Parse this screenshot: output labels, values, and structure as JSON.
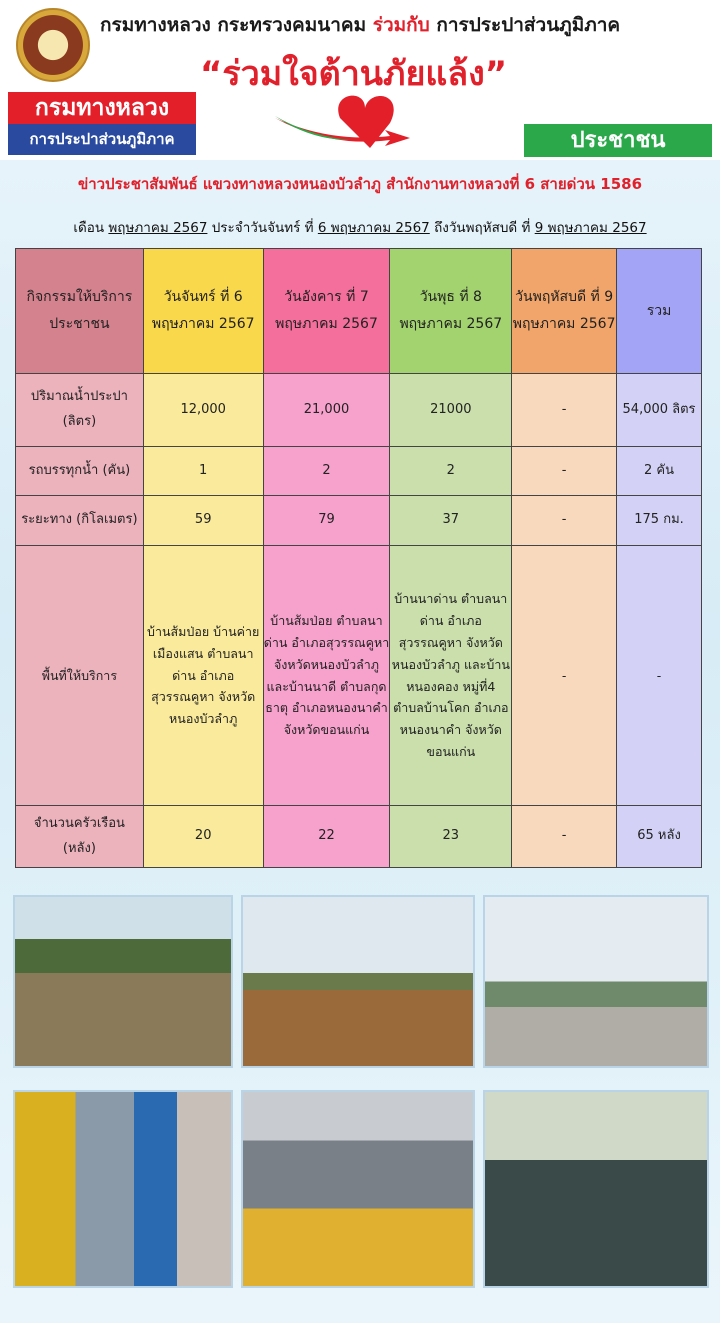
{
  "header": {
    "title_part1": "กรมทางหลวง กระทรวงคมนาคม ",
    "title_joint": "ร่วมกับ",
    "title_part2": " การประปาส่วนภูมิภาค",
    "slogan": "“ร่วมใจต้านภัยแล้ง”",
    "logo_doh": "กรมทางหลวง",
    "logo_pwa": "การประปาส่วนภูมิภาค",
    "logo_people": "ประชาชน",
    "news_line": "ข่าวประชาสัมพันธ์  แขวงทางหลวงหนองบัวลำภู  สำนักงานทางหลวงที่ 6  สายด่วน 1586",
    "period": {
      "month_label": "เดือน ",
      "month": "พฤษภาคม 2567",
      "from_label": "  ประจำวันจันทร์ ที่ ",
      "from": "6 พฤษภาคม 2567",
      "to_label": "  ถึงวันพฤหัสบดี  ที่ ",
      "to": "9  พฤษภาคม 2567"
    }
  },
  "table": {
    "headers": [
      "กิจกรรมให้บริการ ประชาชน",
      "วันจันทร์ ที่ 6 พฤษภาคม 2567",
      "วันอังคาร ที่ 7 พฤษภาคม 2567",
      "วันพุธ ที่ 8 พฤษภาคม 2567",
      "วันพฤหัสบดี ที่ 9 พฤษภาคม 2567",
      "รวม"
    ],
    "rows": [
      [
        "ปริมาณน้ำประปา (ลิตร)",
        "12,000",
        "21,000",
        "21000",
        "-",
        "54,000 ลิตร"
      ],
      [
        "รถบรรทุกน้ำ (คัน)",
        "1",
        "2",
        "2",
        "-",
        "2 คัน"
      ],
      [
        "ระยะทาง (กิโลเมตร)",
        "59",
        "79",
        "37",
        "-",
        "175 กม."
      ],
      [
        "พื้นที่ให้บริการ",
        "บ้านส้มป่อย บ้านค่ายเมืองแสน ตำบลนาด่าน อำเภอสุวรรณคูหา จังหวัดหนองบัวลำภู",
        "บ้านส้มป่อย ตำบลนาด่าน อำเภอสุวรรณคูหา จังหวัดหนองบัวลำภู และบ้านนาดี ตำบลกุดธาตุ อำเภอหนองนาคำ จังหวัดขอนแก่น",
        "บ้านนาด่าน ตำบลนาด่าน อำเภอสุวรรณคูหา จังหวัดหนองบัวลำภู และบ้านหนองคอง หมู่ที่4 ตำบลบ้านโคก อำเภอหนองนาคำ จังหวัดขอนแก่น",
        "-",
        "-"
      ],
      [
        "จำนวนครัวเรือน (หลัง)",
        "20",
        "22",
        "23",
        "-",
        "65 หลัง"
      ]
    ]
  },
  "colors": {
    "accent_red": "#e0202a",
    "blue": "#2a4aa0",
    "green": "#2aa84a"
  }
}
